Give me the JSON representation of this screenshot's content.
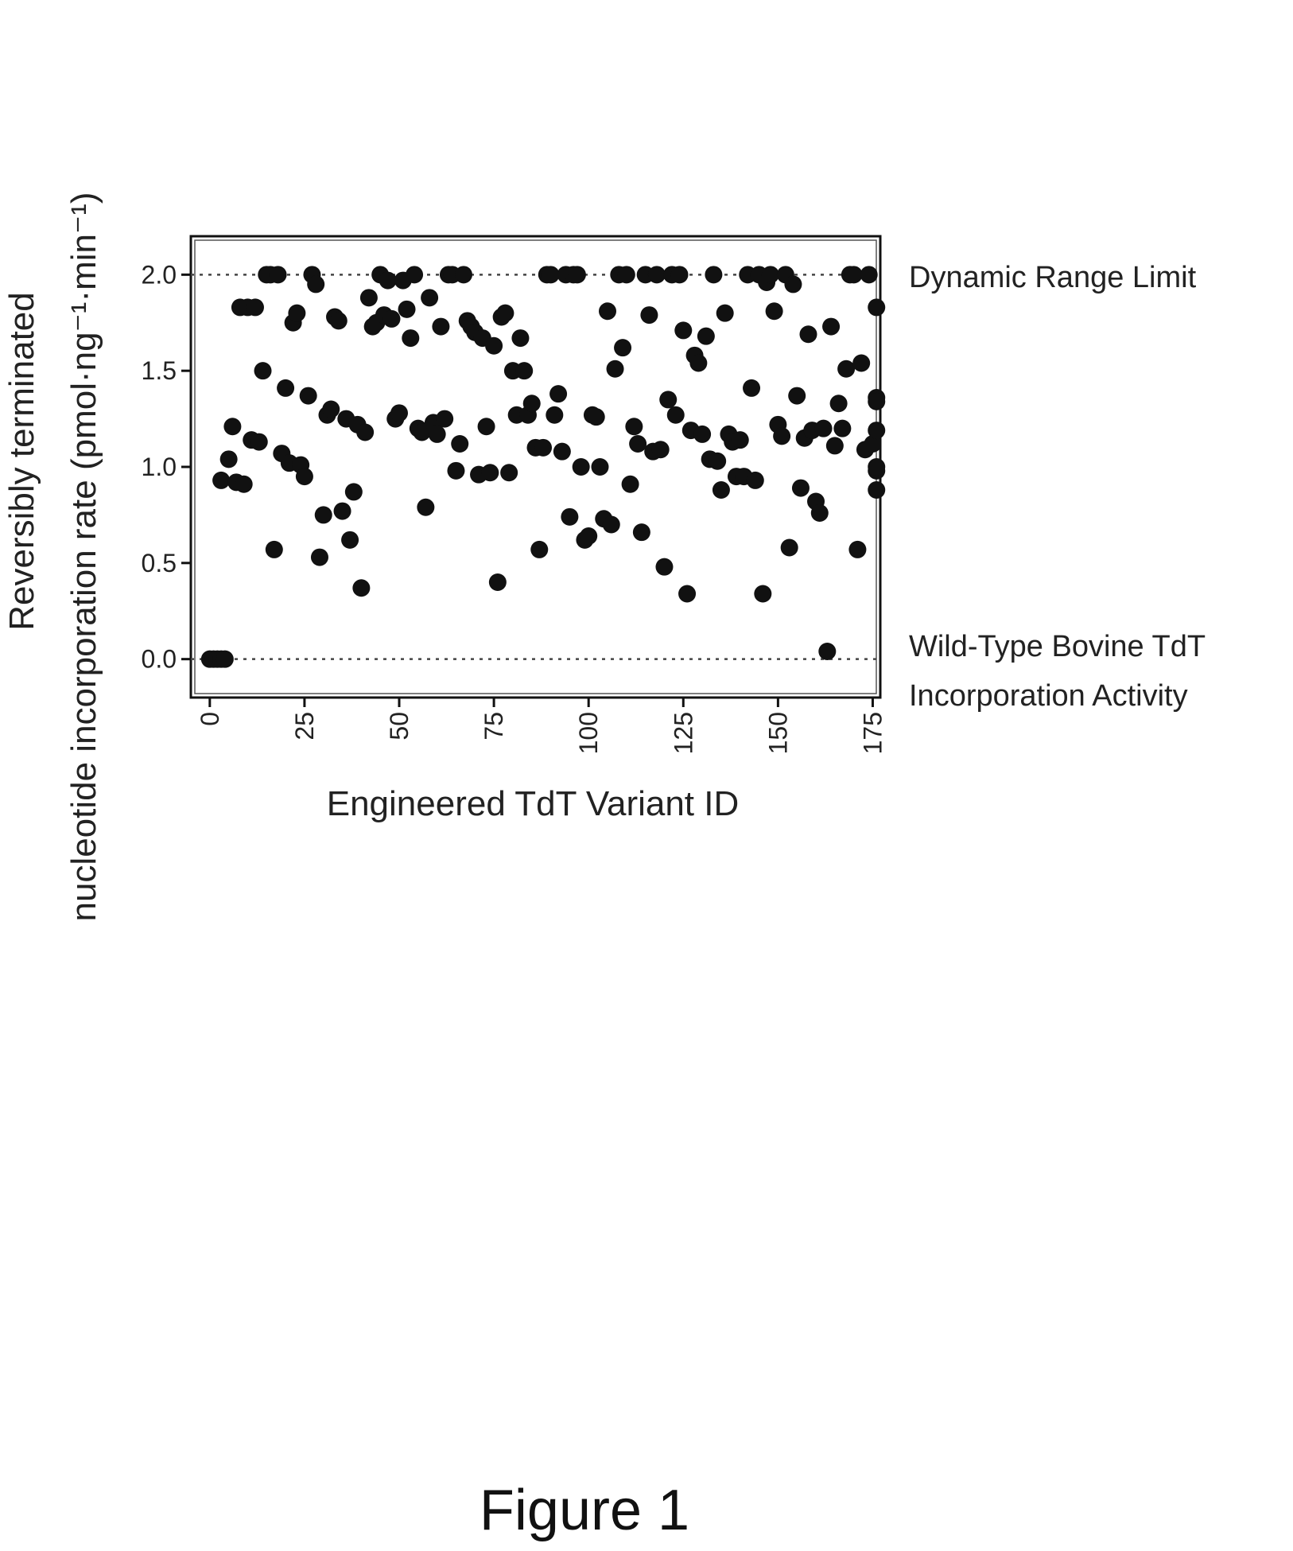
{
  "chart_data": {
    "type": "scatter",
    "title": "",
    "xlabel": "Engineered TdT Variant ID",
    "ylabel_line1": "Reversibly terminated",
    "ylabel_line2": "nucleotide incorporation rate (pmol·ng⁻¹·min⁻¹)",
    "xlim": [
      -5,
      177
    ],
    "ylim": [
      -0.2,
      2.2
    ],
    "xticks": [
      0,
      25,
      50,
      75,
      100,
      125,
      150,
      175
    ],
    "xtick_labels": [
      "0",
      "25",
      "50",
      "75",
      "100",
      "125",
      "150",
      "175"
    ],
    "yticks": [
      0.0,
      0.5,
      1.0,
      1.5,
      2.0
    ],
    "ytick_labels": [
      "0.0",
      "0.5",
      "1.0",
      "1.5",
      "2.0"
    ],
    "grid": false,
    "reference_lines": [
      {
        "y": 2.0,
        "label": "Dynamic Range Limit"
      },
      {
        "y": 0.0,
        "label_line1": "Wild-Type Bovine TdT",
        "label_line2": "Incorporation Activity"
      }
    ],
    "points": [
      [
        0,
        0.0
      ],
      [
        1,
        0.0
      ],
      [
        2,
        0.0
      ],
      [
        3,
        0.0
      ],
      [
        4,
        0.0
      ],
      [
        3,
        0.93
      ],
      [
        5,
        1.04
      ],
      [
        6,
        1.21
      ],
      [
        7,
        0.92
      ],
      [
        8,
        1.83
      ],
      [
        9,
        0.91
      ],
      [
        10,
        1.83
      ],
      [
        11,
        1.14
      ],
      [
        12,
        1.83
      ],
      [
        13,
        1.13
      ],
      [
        14,
        1.5
      ],
      [
        15,
        2.0
      ],
      [
        16,
        2.0
      ],
      [
        17,
        0.57
      ],
      [
        18,
        2.0
      ],
      [
        19,
        1.07
      ],
      [
        20,
        1.41
      ],
      [
        21,
        1.02
      ],
      [
        22,
        1.75
      ],
      [
        23,
        1.8
      ],
      [
        24,
        1.01
      ],
      [
        25,
        0.95
      ],
      [
        26,
        1.37
      ],
      [
        27,
        2.0
      ],
      [
        28,
        1.95
      ],
      [
        29,
        0.53
      ],
      [
        30,
        0.75
      ],
      [
        31,
        1.27
      ],
      [
        32,
        1.3
      ],
      [
        33,
        1.78
      ],
      [
        34,
        1.76
      ],
      [
        35,
        0.77
      ],
      [
        36,
        1.25
      ],
      [
        37,
        0.62
      ],
      [
        38,
        0.87
      ],
      [
        39,
        1.22
      ],
      [
        40,
        0.37
      ],
      [
        41,
        1.18
      ],
      [
        42,
        1.88
      ],
      [
        43,
        1.73
      ],
      [
        44,
        1.75
      ],
      [
        45,
        2.0
      ],
      [
        46,
        1.79
      ],
      [
        47,
        1.97
      ],
      [
        48,
        1.77
      ],
      [
        49,
        1.25
      ],
      [
        50,
        1.28
      ],
      [
        51,
        1.97
      ],
      [
        52,
        1.82
      ],
      [
        53,
        1.67
      ],
      [
        54,
        2.0
      ],
      [
        55,
        1.2
      ],
      [
        56,
        1.18
      ],
      [
        57,
        0.79
      ],
      [
        58,
        1.88
      ],
      [
        59,
        1.23
      ],
      [
        60,
        1.17
      ],
      [
        61,
        1.73
      ],
      [
        62,
        1.25
      ],
      [
        63,
        2.0
      ],
      [
        64,
        2.0
      ],
      [
        65,
        0.98
      ],
      [
        66,
        1.12
      ],
      [
        67,
        2.0
      ],
      [
        68,
        1.76
      ],
      [
        69,
        1.73
      ],
      [
        70,
        1.7
      ],
      [
        71,
        0.96
      ],
      [
        72,
        1.67
      ],
      [
        73,
        1.21
      ],
      [
        74,
        0.97
      ],
      [
        75,
        1.63
      ],
      [
        76,
        0.4
      ],
      [
        77,
        1.78
      ],
      [
        78,
        1.8
      ],
      [
        79,
        0.97
      ],
      [
        80,
        1.5
      ],
      [
        81,
        1.27
      ],
      [
        82,
        1.67
      ],
      [
        83,
        1.5
      ],
      [
        84,
        1.27
      ],
      [
        85,
        1.33
      ],
      [
        86,
        1.1
      ],
      [
        87,
        0.57
      ],
      [
        88,
        1.1
      ],
      [
        89,
        2.0
      ],
      [
        90,
        2.0
      ],
      [
        91,
        1.27
      ],
      [
        92,
        1.38
      ],
      [
        93,
        1.08
      ],
      [
        94,
        2.0
      ],
      [
        95,
        0.74
      ],
      [
        96,
        2.0
      ],
      [
        97,
        2.0
      ],
      [
        98,
        1.0
      ],
      [
        99,
        0.62
      ],
      [
        100,
        0.64
      ],
      [
        101,
        1.27
      ],
      [
        102,
        1.26
      ],
      [
        103,
        1.0
      ],
      [
        104,
        0.73
      ],
      [
        105,
        1.81
      ],
      [
        106,
        0.7
      ],
      [
        107,
        1.51
      ],
      [
        108,
        2.0
      ],
      [
        109,
        1.62
      ],
      [
        110,
        2.0
      ],
      [
        111,
        0.91
      ],
      [
        112,
        1.21
      ],
      [
        113,
        1.12
      ],
      [
        114,
        0.66
      ],
      [
        115,
        2.0
      ],
      [
        116,
        1.79
      ],
      [
        117,
        1.08
      ],
      [
        118,
        2.0
      ],
      [
        119,
        1.09
      ],
      [
        120,
        0.48
      ],
      [
        121,
        1.35
      ],
      [
        122,
        2.0
      ],
      [
        123,
        1.27
      ],
      [
        124,
        2.0
      ],
      [
        125,
        1.71
      ],
      [
        126,
        0.34
      ],
      [
        127,
        1.19
      ],
      [
        128,
        1.58
      ],
      [
        129,
        1.54
      ],
      [
        130,
        1.17
      ],
      [
        131,
        1.68
      ],
      [
        132,
        1.04
      ],
      [
        133,
        2.0
      ],
      [
        134,
        1.03
      ],
      [
        135,
        0.88
      ],
      [
        136,
        1.8
      ],
      [
        137,
        1.17
      ],
      [
        138,
        1.13
      ],
      [
        139,
        0.95
      ],
      [
        140,
        1.14
      ],
      [
        141,
        0.95
      ],
      [
        142,
        2.0
      ],
      [
        143,
        1.41
      ],
      [
        144,
        0.93
      ],
      [
        145,
        2.0
      ],
      [
        146,
        0.34
      ],
      [
        147,
        1.96
      ],
      [
        148,
        2.0
      ],
      [
        149,
        1.81
      ],
      [
        150,
        1.22
      ],
      [
        151,
        1.16
      ],
      [
        152,
        2.0
      ],
      [
        153,
        0.58
      ],
      [
        154,
        1.95
      ],
      [
        155,
        1.37
      ],
      [
        156,
        0.89
      ],
      [
        157,
        1.15
      ],
      [
        158,
        1.69
      ],
      [
        159,
        1.19
      ],
      [
        160,
        0.82
      ],
      [
        161,
        0.76
      ],
      [
        162,
        1.2
      ],
      [
        163,
        0.04
      ],
      [
        164,
        1.73
      ],
      [
        165,
        1.11
      ],
      [
        166,
        1.33
      ],
      [
        167,
        1.2
      ],
      [
        168,
        1.51
      ],
      [
        169,
        2.0
      ],
      [
        170,
        2.0
      ],
      [
        171,
        0.57
      ],
      [
        172,
        1.54
      ],
      [
        173,
        1.09
      ],
      [
        174,
        2.0
      ],
      [
        175,
        1.12
      ],
      [
        176,
        1.19
      ],
      [
        176,
        1.83
      ],
      [
        176,
        0.98
      ],
      [
        176,
        1.0
      ],
      [
        176,
        0.88
      ],
      [
        176,
        1.36
      ],
      [
        176,
        1.34
      ]
    ]
  },
  "figure_caption": "Figure 1"
}
